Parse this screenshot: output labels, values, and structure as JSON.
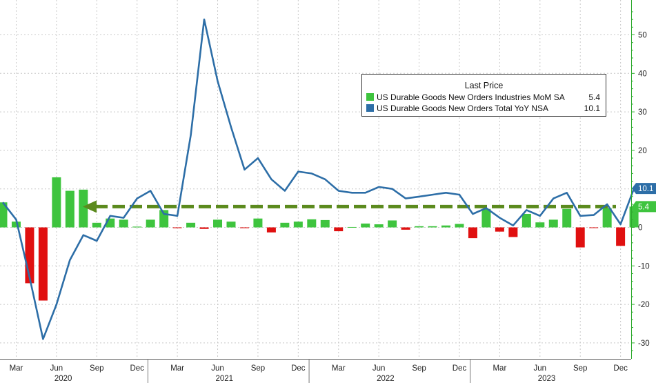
{
  "chart_data": {
    "type": "bar+line",
    "title": "",
    "legend": {
      "title": "Last Price",
      "placement": "top-right",
      "items": [
        {
          "name": "US Durable Goods New Orders Industries MoM SA",
          "last": "5.4",
          "color": "#3ec43e"
        },
        {
          "name": "US Durable Goods New Orders Total YoY NSA",
          "last": "10.1",
          "color": "#2d6ea7"
        }
      ]
    },
    "y_axis": {
      "position": "right",
      "ylim": [
        -33,
        58
      ],
      "ticks": [
        -30,
        -20,
        -10,
        0,
        10,
        20,
        30,
        40,
        50
      ]
    },
    "x_axis": {
      "months": [
        "Mar",
        "Jun",
        "Sep",
        "Dec",
        "Mar",
        "Jun",
        "Sep",
        "Dec",
        "Mar",
        "Jun",
        "Sep",
        "Dec",
        "Mar",
        "Jun",
        "Sep",
        "Dec"
      ],
      "years": [
        "2020",
        "2021",
        "2022",
        "2023"
      ]
    },
    "grid": true,
    "series": [
      {
        "name": "US Durable Goods New Orders Industries MoM SA",
        "kind": "bar",
        "positive_color": "#3ec43e",
        "negative_color": "#e01010",
        "values": [
          6.5,
          1.5,
          -14.5,
          -19.0,
          13.0,
          9.5,
          9.8,
          1.2,
          2.3,
          2.0,
          0.2,
          2.0,
          4.5,
          -0.2,
          1.2,
          -0.4,
          2.0,
          1.5,
          -0.2,
          2.3,
          -1.3,
          1.2,
          1.5,
          2.1,
          1.9,
          -1.0,
          0.1,
          1.0,
          0.8,
          1.8,
          -0.6,
          0.3,
          0.3,
          0.5,
          0.9,
          -2.8,
          4.8,
          -1.1,
          -2.5,
          3.5,
          1.3,
          2.0,
          4.8,
          -5.2,
          -0.1,
          5.0,
          -4.8,
          5.4
        ]
      },
      {
        "name": "US Durable Goods New Orders Total YoY NSA",
        "kind": "line",
        "color": "#2d6ea7",
        "values": [
          6.5,
          2.0,
          -13.0,
          -29.0,
          -20.0,
          -8.5,
          -2.0,
          -3.5,
          3.0,
          2.5,
          7.5,
          9.5,
          3.5,
          3.0,
          24.0,
          54.0,
          38.0,
          26.0,
          15.0,
          18.0,
          12.5,
          9.5,
          14.5,
          14.0,
          12.5,
          9.5,
          9.0,
          9.0,
          10.5,
          10.0,
          7.5,
          8.0,
          8.5,
          9.0,
          8.5,
          3.5,
          5.0,
          2.5,
          0.5,
          4.5,
          3.0,
          7.5,
          9.0,
          3.0,
          3.2,
          6.0,
          0.8,
          10.1
        ]
      }
    ],
    "reference": {
      "value": 5.4,
      "color": "#5b8a1d",
      "style": "dashed-arrow"
    },
    "value_tags": [
      {
        "label": "10.1",
        "value": 10.1,
        "color": "#2d6ea7"
      },
      {
        "label": "5.4",
        "value": 5.4,
        "color": "#3ec43e"
      }
    ]
  }
}
